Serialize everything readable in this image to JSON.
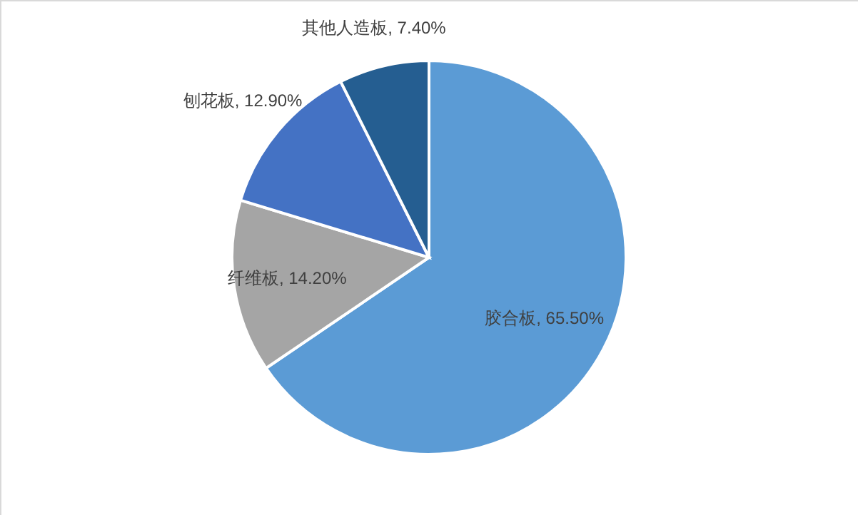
{
  "chart_data": {
    "type": "pie",
    "categories": [
      "胶合板",
      "纤维板",
      "刨花板",
      "其他人造板"
    ],
    "values": [
      65.5,
      14.2,
      12.9,
      7.4
    ],
    "colors": [
      "#5b9bd5",
      "#a5a5a5",
      "#4472c4",
      "#255e91"
    ],
    "value_labels": [
      "65.50%",
      "14.20%",
      "12.90%",
      "7.40%"
    ]
  }
}
